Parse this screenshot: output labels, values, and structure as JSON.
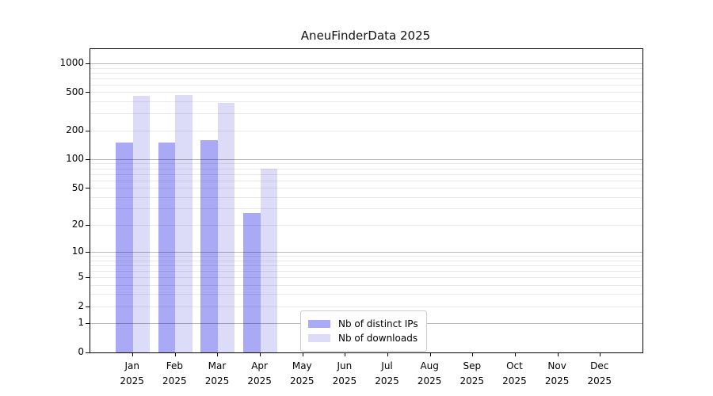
{
  "chart_data": {
    "type": "bar",
    "title": "AneuFinderData 2025",
    "xlabel": "",
    "ylabel": "",
    "year_label": "2025",
    "categories": [
      "Jan",
      "Feb",
      "Mar",
      "Apr",
      "May",
      "Jun",
      "Jul",
      "Aug",
      "Sep",
      "Oct",
      "Nov",
      "Dec"
    ],
    "series": [
      {
        "name": "Nb of distinct IPs",
        "color": "#a9a9f5",
        "values": [
          152,
          152,
          159,
          27,
          0,
          0,
          0,
          0,
          0,
          0,
          0,
          0
        ]
      },
      {
        "name": "Nb of downloads",
        "color": "#dcdcf8",
        "values": [
          465,
          470,
          389,
          80,
          0,
          0,
          0,
          0,
          0,
          0,
          0,
          0
        ]
      }
    ],
    "y_ticks": [
      0,
      1,
      2,
      5,
      10,
      20,
      50,
      100,
      200,
      500,
      1000
    ],
    "y_scale": "log10(value+1)",
    "ylim": [
      0,
      1460
    ],
    "grid": true,
    "legend_position": "lower-center-left-inside"
  }
}
